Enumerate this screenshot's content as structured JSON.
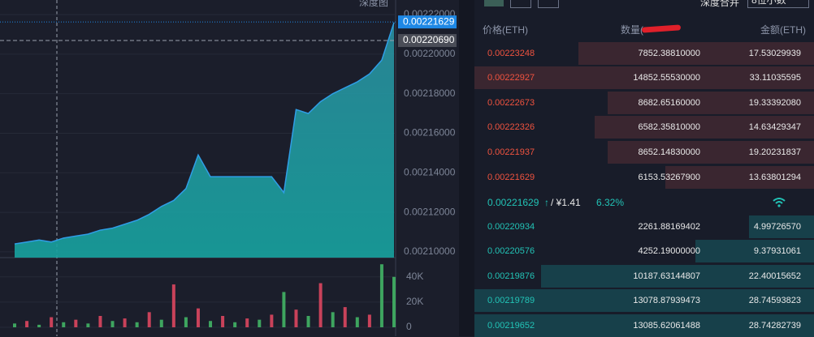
{
  "top_bar": {
    "depth_chart_tab": "深度图",
    "merge_label": "深度合并",
    "decimals": "8位小数"
  },
  "chart_data": [
    {
      "type": "area",
      "color": "#1f9aa2",
      "line_color": "#2f9ee6",
      "categories": [
        null,
        null,
        null,
        null,
        null,
        null,
        null,
        null,
        null,
        null,
        null,
        null,
        null,
        null,
        null,
        null,
        null,
        null,
        null,
        null,
        null,
        null,
        null,
        null,
        null,
        null,
        null,
        null,
        null,
        null,
        null,
        null
      ],
      "values": [
        0.002104,
        0.002105,
        0.002106,
        0.002105,
        0.002107,
        0.002108,
        0.002109,
        0.002111,
        0.002112,
        0.002114,
        0.002116,
        0.002119,
        0.002123,
        0.002126,
        0.002132,
        0.002149,
        0.002138,
        0.002138,
        0.002138,
        0.002138,
        0.002138,
        0.002138,
        0.00213,
        0.002172,
        0.00217,
        0.002176,
        0.00218,
        0.002183,
        0.002186,
        0.00219,
        0.002197,
        0.002216
      ],
      "ylim": [
        0.0020971,
        0.0022274
      ],
      "yticks": [
        {
          "value": 0.00222,
          "label": "0.00222000"
        },
        {
          "value": 0.0022,
          "label": "0.00220000"
        },
        {
          "value": 0.00218,
          "label": "0.00218000"
        },
        {
          "value": 0.00216,
          "label": "0.00216000"
        },
        {
          "value": 0.00214,
          "label": "0.00214000"
        },
        {
          "value": 0.00212,
          "label": "0.00212000"
        },
        {
          "value": 0.0021,
          "label": "0.00210000"
        }
      ],
      "markers": [
        {
          "value": 0.00221629,
          "label": "0.00221629",
          "color": "#1e88e5"
        },
        {
          "value": 0.0022069,
          "label": "0.00220690",
          "color": "#4a4d57"
        }
      ]
    },
    {
      "type": "bar",
      "categories": [
        null,
        null,
        null,
        null,
        null,
        null,
        null,
        null,
        null,
        null,
        null,
        null,
        null,
        null,
        null,
        null,
        null,
        null,
        null,
        null,
        null,
        null,
        null,
        null,
        null,
        null,
        null,
        null,
        null,
        null,
        null,
        null
      ],
      "values": [
        3000,
        5000,
        2000,
        8000,
        4000,
        6000,
        3000,
        9000,
        5000,
        7000,
        4000,
        12000,
        6000,
        34000,
        8000,
        15000,
        5000,
        9000,
        4000,
        7000,
        6000,
        10000,
        28000,
        14000,
        9000,
        35000,
        12000,
        16000,
        8000,
        10000,
        50000,
        40000
      ],
      "colors": [
        "#3ea55f",
        "#c9425a",
        "#3ea55f",
        "#c9425a",
        "#3ea55f",
        "#c9425a",
        "#3ea55f",
        "#c9425a",
        "#3ea55f",
        "#c9425a",
        "#3ea55f",
        "#c9425a",
        "#3ea55f",
        "#c9425a",
        "#3ea55f",
        "#c9425a",
        "#3ea55f",
        "#c9425a",
        "#3ea55f",
        "#c9425a",
        "#3ea55f",
        "#c9425a",
        "#3ea55f",
        "#c9425a",
        "#3ea55f",
        "#c9425a",
        "#3ea55f",
        "#c9425a",
        "#3ea55f",
        "#c9425a",
        "#3ea55f",
        "#3ea55f"
      ],
      "ylim": [
        0,
        54000
      ],
      "yticks": [
        0,
        {
          "value": 20000,
          "label": "20K"
        },
        {
          "value": 40000,
          "label": "40K"
        }
      ]
    }
  ],
  "order_book": {
    "headers": [
      "价格(ETH)",
      "数量(",
      "金额(ETH)"
    ],
    "asks": [
      [
        "0.00223248",
        "7852.38810000",
        "17.53029939"
      ],
      [
        "0.00222927",
        "14852.55530000",
        "33.11035595"
      ],
      [
        "0.00222673",
        "8682.65160000",
        "19.33392080"
      ],
      [
        "0.00222326",
        "6582.35810000",
        "14.63429347"
      ],
      [
        "0.00221937",
        "8652.14830000",
        "19.20231837"
      ],
      [
        "0.00221629",
        "6153.53267900",
        "13.63801294"
      ]
    ],
    "last": {
      "price": "0.00221629",
      "arrow": "↑",
      "cny": "/ ¥1.41",
      "change": "6.32%"
    },
    "bids": [
      [
        "0.00220934",
        "2261.88169402",
        "4.99726570"
      ],
      [
        "0.00220576",
        "4252.19000000",
        "9.37931061"
      ],
      [
        "0.00219876",
        "10187.63144807",
        "22.40015652"
      ],
      [
        "0.00219789",
        "13078.87939473",
        "28.74593823"
      ],
      [
        "0.00219652",
        "13085.62061488",
        "28.74282739"
      ]
    ]
  }
}
